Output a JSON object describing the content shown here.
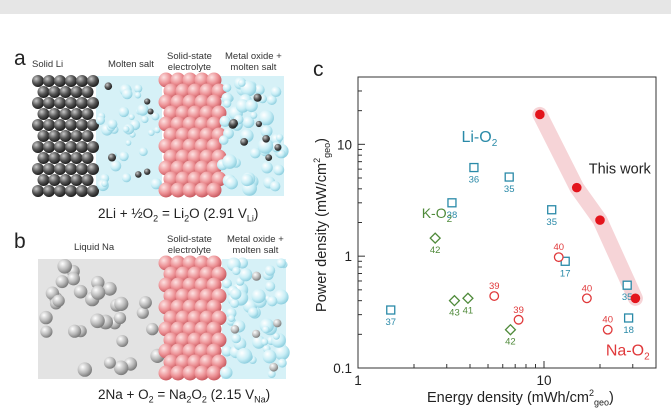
{
  "panel_a": {
    "letter": "a",
    "labels": [
      "Solid Li",
      "Molten salt",
      "Solid-state",
      "electrolyte",
      "Metal oxide +",
      "molten salt"
    ],
    "equation": {
      "main": "2Li + ½O",
      "sub1": "2",
      "mid": " = Li",
      "sub2": "2",
      "rest": "O (2.91 V",
      "sub3": "Li",
      "end": ")"
    }
  },
  "panel_b": {
    "letter": "b",
    "labels": [
      "Liquid Na",
      "Solid-state",
      "electrolyte",
      "Metal oxide +",
      "molten salt"
    ],
    "equation": {
      "main": "2Na + O",
      "sub1": "2",
      "mid": " = Na",
      "sub2": "2",
      "mid2": "O",
      "sub3": "2",
      "rest": " (2.15 V",
      "sub4": "Na",
      "end": ")"
    }
  },
  "panel_c": {
    "letter": "c"
  },
  "colors": {
    "li_o2": "#2a8aa8",
    "k_o2": "#4f8a3a",
    "na_o2": "#e0393b",
    "this_work": "#e3141c",
    "ribbon": "#f6d4d7"
  },
  "chart_data": {
    "type": "scatter",
    "xlabel": {
      "main": "Energy density (mWh/cm",
      "sup": "2",
      "sub": "geo",
      "end": ")"
    },
    "ylabel": {
      "main": "Power density (mW/cm",
      "sup": "2",
      "sub": "geo",
      "end": ")"
    },
    "x_scale": "log",
    "y_scale": "log",
    "xlim": [
      1,
      40
    ],
    "ylim": [
      0.1,
      40
    ],
    "x_ticks": [
      {
        "v": 1,
        "label": "1"
      },
      {
        "v": 10,
        "label": "10"
      }
    ],
    "y_ticks": [
      {
        "v": 0.1,
        "label": "0.1"
      },
      {
        "v": 1,
        "label": "1"
      },
      {
        "v": 10,
        "label": "10"
      }
    ],
    "grid": false,
    "series": [
      {
        "name": "Li-O2",
        "label_main": "Li-O",
        "label_sub": "2",
        "marker": "square",
        "color_key": "li_o2",
        "points": [
          {
            "x": 1.5,
            "y": 0.33,
            "ref": "37"
          },
          {
            "x": 3.2,
            "y": 3.0,
            "ref": "38"
          },
          {
            "x": 4.2,
            "y": 6.2,
            "ref": "36"
          },
          {
            "x": 6.5,
            "y": 5.1,
            "ref": "35"
          },
          {
            "x": 11.0,
            "y": 2.6,
            "ref": "35"
          },
          {
            "x": 13.0,
            "y": 0.9,
            "ref": "17"
          },
          {
            "x": 28.0,
            "y": 0.55,
            "ref": "35"
          },
          {
            "x": 28.5,
            "y": 0.28,
            "ref": "18"
          }
        ]
      },
      {
        "name": "K-O2",
        "label_main": "K-O",
        "label_sub": "2",
        "marker": "diamond",
        "color_key": "k_o2",
        "points": [
          {
            "x": 2.6,
            "y": 1.45,
            "ref": "42"
          },
          {
            "x": 3.3,
            "y": 0.4,
            "ref": "43"
          },
          {
            "x": 3.9,
            "y": 0.42,
            "ref": "41"
          },
          {
            "x": 6.6,
            "y": 0.22,
            "ref": "42"
          }
        ]
      },
      {
        "name": "Na-O2",
        "label_main": "Na-O",
        "label_sub": "2",
        "marker": "circle",
        "color_key": "na_o2",
        "points": [
          {
            "x": 7.3,
            "y": 0.27,
            "ref": "39"
          },
          {
            "x": 5.4,
            "y": 0.44,
            "ref": "39"
          },
          {
            "x": 12.0,
            "y": 0.98,
            "ref": "40"
          },
          {
            "x": 17.0,
            "y": 0.42,
            "ref": "40"
          },
          {
            "x": 22.0,
            "y": 0.22,
            "ref": "40"
          }
        ]
      },
      {
        "name": "This work",
        "marker": "filled-circle",
        "color_key": "this_work",
        "points": [
          {
            "x": 9.5,
            "y": 18.5
          },
          {
            "x": 15.0,
            "y": 4.1
          },
          {
            "x": 20.0,
            "y": 2.1
          },
          {
            "x": 31.0,
            "y": 0.42
          }
        ]
      }
    ]
  }
}
